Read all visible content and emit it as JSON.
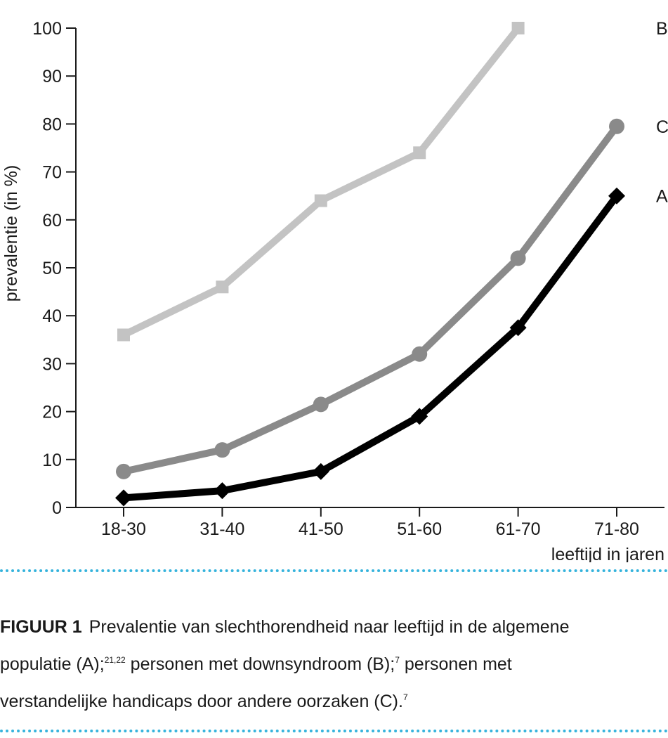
{
  "chart_data": {
    "type": "line",
    "categories": [
      "18-30",
      "31-40",
      "41-50",
      "51-60",
      "61-70",
      "71-80"
    ],
    "series": [
      {
        "name": "B",
        "values": [
          36,
          46,
          64,
          74,
          100,
          null
        ],
        "color": "#c3c3c3",
        "marker": "square"
      },
      {
        "name": "C",
        "values": [
          7.5,
          12,
          21.5,
          32,
          52,
          79.5
        ],
        "color": "#8a8a8a",
        "marker": "circle"
      },
      {
        "name": "A",
        "values": [
          2,
          3.5,
          7.5,
          19,
          37.5,
          65
        ],
        "color": "#000000",
        "marker": "diamond"
      }
    ],
    "ylabel": "prevalentie (in %)",
    "xlabel": "leeftijd in jaren",
    "ylim": [
      0,
      100
    ],
    "yticks": [
      0,
      10,
      20,
      30,
      40,
      50,
      60,
      70,
      80,
      90,
      100
    ],
    "grid": false,
    "legend": "inline labels at line ends"
  },
  "caption": {
    "lead": "FIGUUR 1",
    "line1": "Prevalentie van slechthorendheid naar leeftijd in de algemene",
    "line2_a": "populatie (A);",
    "ref_a": "21,22",
    "line2_b": " personen met downsyndroom (B);",
    "ref_b": "7",
    "line2_c": " personen met",
    "line3_a": "verstandelijke handicaps door andere oorzaken (C).",
    "ref_c": "7"
  },
  "colors": {
    "rule": "#35b3dc",
    "axis": "#1a1a1a"
  }
}
